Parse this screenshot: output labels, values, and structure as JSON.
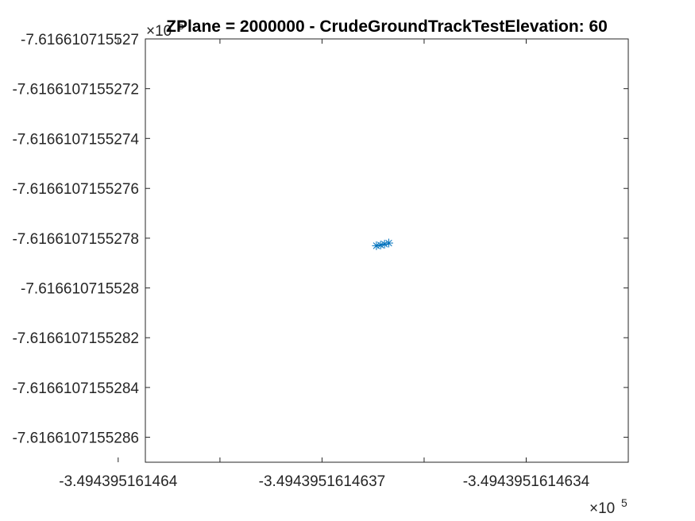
{
  "chart_data": {
    "type": "scatter",
    "title": "ZPlane = 2000000 - CrudeGroundTrackTestElevation: 60",
    "xlabel": "",
    "ylabel": "",
    "x_exponent": {
      "base": "×10",
      "power": "5"
    },
    "y_exponent": {
      "base": "×10",
      "power": "5"
    },
    "xlim": [
      -3.49439516146396,
      -3.49439516146325
    ],
    "ylim": [
      -7.6166107155287,
      -7.616610715527
    ],
    "x_ticks": [
      {
        "value": -3.494395161464,
        "label": "-3.494395161464"
      },
      {
        "value": -3.4943951614637,
        "label": "-3.4943951614637"
      },
      {
        "value": -3.4943951614634,
        "label": "-3.4943951614634"
      }
    ],
    "x_minor_ticks": [
      -3.49439516146385,
      -3.49439516146355,
      -3.4943951614634
    ],
    "y_ticks": [
      {
        "value": -7.616610715527,
        "label": "-7.616610715527"
      },
      {
        "value": -7.6166107155272,
        "label": "-7.6166107155272"
      },
      {
        "value": -7.6166107155274,
        "label": "-7.6166107155274"
      },
      {
        "value": -7.6166107155276,
        "label": "-7.6166107155276"
      },
      {
        "value": -7.6166107155278,
        "label": "-7.6166107155278"
      },
      {
        "value": -7.616610715528,
        "label": "-7.616610715528"
      },
      {
        "value": -7.6166107155282,
        "label": "-7.6166107155282"
      },
      {
        "value": -7.6166107155284,
        "label": "-7.6166107155284"
      },
      {
        "value": -7.6166107155286,
        "label": "-7.6166107155286"
      }
    ],
    "marker": "asterisk",
    "marker_color": "#0072BD",
    "series": [
      {
        "x": [
          -3.49439516146362,
          -3.494395161463614,
          -3.494395161463608,
          -3.494395161463602
        ],
        "y": [
          -7.61661071552783,
          -7.616610715527828,
          -7.616610715527824,
          -7.61661071552782
        ]
      }
    ],
    "grid": false,
    "legend": "none"
  }
}
